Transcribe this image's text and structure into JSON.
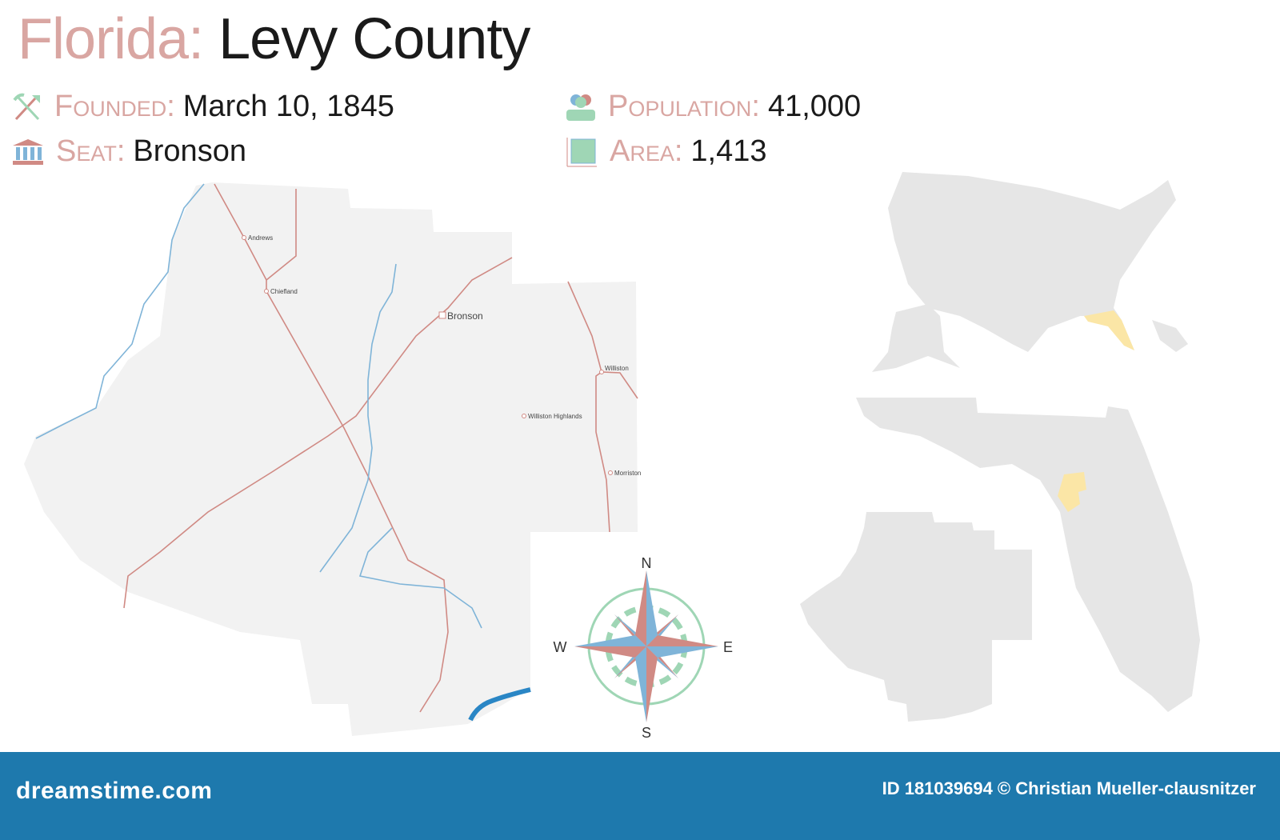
{
  "title": {
    "state": "Florida:",
    "county": "Levy County"
  },
  "facts": {
    "founded": {
      "label": "Founded:",
      "value": "March 10, 1845",
      "icon": "shovel-pickaxe-icon"
    },
    "seat": {
      "label": "Seat:",
      "value": "Bronson",
      "icon": "courthouse-icon"
    },
    "population": {
      "label": "Population:",
      "value": "41,000",
      "icon": "people-icon"
    },
    "area": {
      "label": "Area:",
      "value": "1,413",
      "icon": "area-square-icon"
    }
  },
  "map": {
    "towns": [
      "Andrews",
      "Chiefland",
      "Bronson",
      "Williston",
      "Williston Highlands",
      "Morriston"
    ],
    "seat_town": "Bronson",
    "compass": {
      "n": "N",
      "s": "S",
      "e": "E",
      "w": "W"
    },
    "colors": {
      "land": "#f2f2f2",
      "road": "#d08a84",
      "river": "#7fb4d8",
      "highlight": "#fbe6a6",
      "inset_land": "#e6e6e6"
    }
  },
  "footer": {
    "brand": "dreamstime.com",
    "credit": "ID 181039694 © Christian Mueller-clausnitzer",
    "color": "#1e79ad"
  }
}
